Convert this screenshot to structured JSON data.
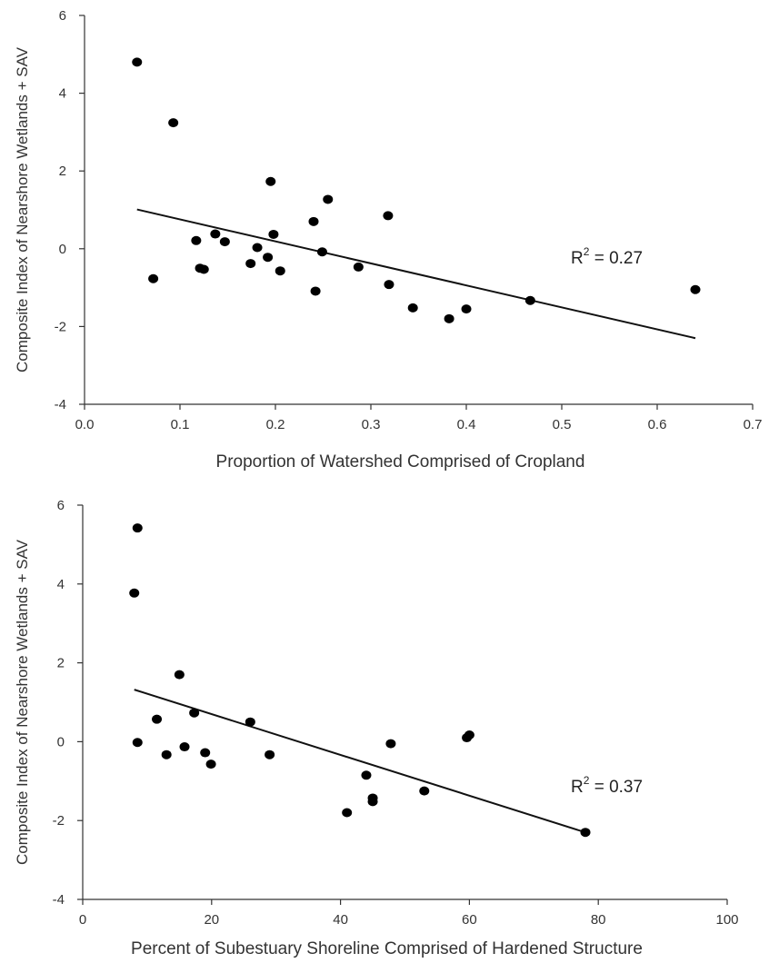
{
  "chart_data": [
    {
      "type": "scatter",
      "title": "",
      "xlabel": "Proportion of Watershed Comprised of Cropland",
      "ylabel": "Composite Index of Nearshore Wetlands + SAV",
      "xlim": [
        0.0,
        0.7
      ],
      "ylim": [
        -4,
        6
      ],
      "xticks": [
        "0.0",
        "0.1",
        "0.2",
        "0.3",
        "0.4",
        "0.5",
        "0.6",
        "0.7"
      ],
      "yticks": [
        "-4",
        "-2",
        "0",
        "2",
        "4",
        "6"
      ],
      "annotation": {
        "r": "R",
        "sup": "2",
        "value": " = 0.27"
      },
      "points": [
        {
          "x": 0.055,
          "y": 4.8
        },
        {
          "x": 0.093,
          "y": 3.24
        },
        {
          "x": 0.072,
          "y": -0.77
        },
        {
          "x": 0.117,
          "y": 0.21
        },
        {
          "x": 0.121,
          "y": -0.5
        },
        {
          "x": 0.125,
          "y": -0.53
        },
        {
          "x": 0.137,
          "y": 0.38
        },
        {
          "x": 0.147,
          "y": 0.18
        },
        {
          "x": 0.174,
          "y": -0.38
        },
        {
          "x": 0.181,
          "y": 0.03
        },
        {
          "x": 0.192,
          "y": -0.22
        },
        {
          "x": 0.195,
          "y": 1.73
        },
        {
          "x": 0.198,
          "y": 0.37
        },
        {
          "x": 0.205,
          "y": -0.57
        },
        {
          "x": 0.24,
          "y": 0.7
        },
        {
          "x": 0.242,
          "y": -1.09
        },
        {
          "x": 0.249,
          "y": -0.08
        },
        {
          "x": 0.255,
          "y": 1.27
        },
        {
          "x": 0.287,
          "y": -0.47
        },
        {
          "x": 0.318,
          "y": 0.85
        },
        {
          "x": 0.319,
          "y": -0.92
        },
        {
          "x": 0.344,
          "y": -1.52
        },
        {
          "x": 0.382,
          "y": -1.8
        },
        {
          "x": 0.4,
          "y": -1.55
        },
        {
          "x": 0.467,
          "y": -1.33
        },
        {
          "x": 0.64,
          "y": -1.05
        }
      ],
      "trendline": [
        {
          "x": 0.055,
          "y": 1.01
        },
        {
          "x": 0.64,
          "y": -2.3
        }
      ]
    },
    {
      "type": "scatter",
      "title": "",
      "xlabel": "Percent of Subestuary Shoreline Comprised of Hardened Structure",
      "ylabel": "Composite Index of Nearshore Wetlands + SAV",
      "xlim": [
        0,
        100
      ],
      "ylim": [
        -4,
        6
      ],
      "xticks": [
        "0",
        "20",
        "40",
        "60",
        "80",
        "100"
      ],
      "yticks": [
        "-4",
        "-2",
        "0",
        "2",
        "4",
        "6"
      ],
      "annotation": {
        "r": "R",
        "sup": "2",
        "value": " = 0.37"
      },
      "points": [
        {
          "x": 8.5,
          "y": 5.42
        },
        {
          "x": 8.0,
          "y": 3.77
        },
        {
          "x": 8.5,
          "y": -0.02
        },
        {
          "x": 11.5,
          "y": 0.57
        },
        {
          "x": 13.0,
          "y": -0.33
        },
        {
          "x": 15.0,
          "y": 1.7
        },
        {
          "x": 15.8,
          "y": -0.13
        },
        {
          "x": 17.3,
          "y": 0.73
        },
        {
          "x": 19.0,
          "y": -0.28
        },
        {
          "x": 19.9,
          "y": -0.57
        },
        {
          "x": 26.0,
          "y": 0.5
        },
        {
          "x": 29.0,
          "y": -0.33
        },
        {
          "x": 41.0,
          "y": -1.8
        },
        {
          "x": 44.0,
          "y": -0.85
        },
        {
          "x": 45.0,
          "y": -1.43
        },
        {
          "x": 45.0,
          "y": -1.52
        },
        {
          "x": 47.8,
          "y": -0.05
        },
        {
          "x": 53.0,
          "y": -1.25
        },
        {
          "x": 59.6,
          "y": 0.1
        },
        {
          "x": 60.0,
          "y": 0.17
        },
        {
          "x": 78.0,
          "y": -2.3
        }
      ],
      "trendline": [
        {
          "x": 8.0,
          "y": 1.32
        },
        {
          "x": 78.0,
          "y": -2.3
        }
      ]
    }
  ]
}
